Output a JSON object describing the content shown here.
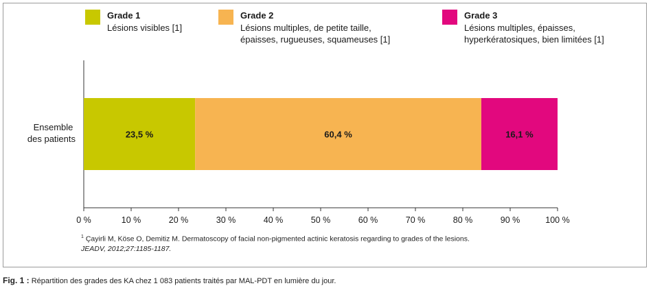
{
  "legend": [
    {
      "grade": "Grade 1",
      "lines": [
        "Lésions visibles [1]"
      ],
      "color": "#c8c800"
    },
    {
      "grade": "Grade 2",
      "lines": [
        "Lésions multiples, de petite taille,",
        "épaisses, rugueuses, squameuses [1]"
      ],
      "color": "#f7b451"
    },
    {
      "grade": "Grade 3",
      "lines": [
        "Lésions multiples, épaisses,",
        "hyperkératosiques, bien limitées [1]"
      ],
      "color": "#e2087e"
    }
  ],
  "chart_data": {
    "type": "bar",
    "orientation": "horizontal",
    "stacked": true,
    "categories": [
      "Ensemble des patients"
    ],
    "category_label_lines": [
      "Ensemble",
      "des patients"
    ],
    "series": [
      {
        "name": "Grade 1",
        "values": [
          23.5
        ],
        "label": "23,5 %",
        "color": "#c8c800"
      },
      {
        "name": "Grade 2",
        "values": [
          60.4
        ],
        "label": "60,4 %",
        "color": "#f7b451"
      },
      {
        "name": "Grade 3",
        "values": [
          16.1
        ],
        "label": "16,1 %",
        "color": "#e2087e"
      }
    ],
    "xlim": [
      0,
      100
    ],
    "xticks": [
      0,
      10,
      20,
      30,
      40,
      50,
      60,
      70,
      80,
      90,
      100
    ],
    "xtick_labels": [
      "0 %",
      "10 %",
      "20 %",
      "30 %",
      "40 %",
      "50 %",
      "60 %",
      "70 %",
      "80 %",
      "90 %",
      "100 %"
    ],
    "grid": false,
    "legend_position": "top"
  },
  "footnote": {
    "mark": "1",
    "line1": "Çayirli M, Köse O, Demitiz M. Dermatoscopy of facial non-pigmented actinic keratosis regarding to grades of the lesions.",
    "line2": "JEADV, 2012;27:1185-1187."
  },
  "caption": {
    "fig": "Fig. 1 :",
    "text": " Répartition des grades des KA chez 1 083 patients traités par MAL-PDT en lumière du jour."
  }
}
